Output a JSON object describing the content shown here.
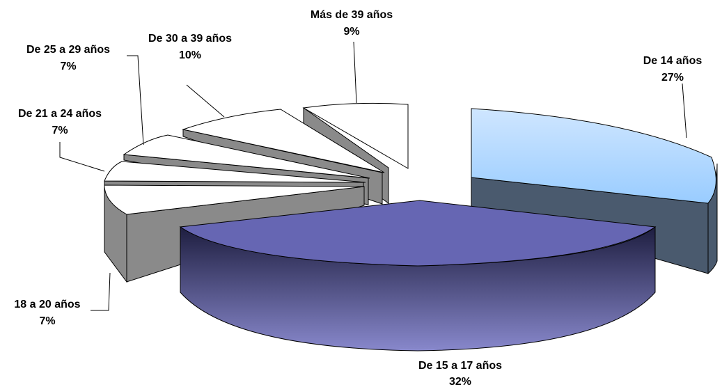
{
  "chart_data": {
    "type": "pie",
    "style": "3d-exploded",
    "slices": [
      {
        "label": "De 14 años",
        "value": 27,
        "value_label": "27%",
        "top_color": "#99ccff",
        "top_color_light": "#cfe6ff",
        "side_color": "#4a5a6e"
      },
      {
        "label": "De 15 a 17 años",
        "value": 32,
        "value_label": "32%",
        "top_color": "#6666b3",
        "top_color_light": "#8888cc",
        "side_color": "#1e1e40"
      },
      {
        "label": "18 a 20 años",
        "value": 7,
        "value_label": "7%",
        "top_color": "#ffffff",
        "side_color": "#8a8a8a"
      },
      {
        "label": "De 21 a 24 años",
        "value": 7,
        "value_label": "7%",
        "top_color": "#ffffff",
        "side_color": "#8a8a8a"
      },
      {
        "label": "De 25 a 29 años",
        "value": 7,
        "value_label": "7%",
        "top_color": "#ffffff",
        "side_color": "#8a8a8a"
      },
      {
        "label": "De 30 a 39 años",
        "value": 10,
        "value_label": "10%",
        "top_color": "#ffffff",
        "side_color": "#8a8a8a"
      },
      {
        "label": "Más de 39 años",
        "value": 9,
        "value_label": "9%",
        "top_color": "#ffffff",
        "side_color": "#8a8a8a"
      }
    ],
    "legend": "none",
    "title": ""
  }
}
